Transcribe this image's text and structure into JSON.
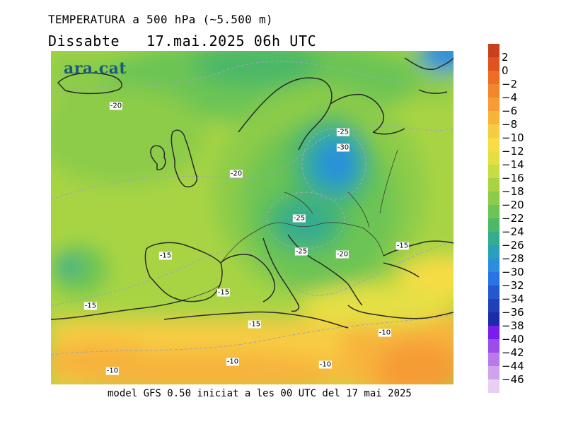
{
  "header": {
    "title": "TEMPERATURA a 500 hPa (~5.500 m)",
    "subtitle": "Dissabte   17.mai.2025 06h UTC"
  },
  "logo": {
    "text": "ara.cat"
  },
  "footer": {
    "text": "model GFS 0.50 iniciat a les 00 UTC del 17 mai 2025"
  },
  "contour_labels": [
    "-20",
    "-25",
    "-30",
    "-20",
    "-25",
    "-25",
    "-20",
    "-15",
    "-15",
    "-15",
    "-15",
    "-15",
    "-10",
    "-10",
    "-10",
    "-10"
  ],
  "legend": {
    "labels": [
      "2",
      "0",
      "−2",
      "−4",
      "−6",
      "−8",
      "−10",
      "−12",
      "−14",
      "−16",
      "−18",
      "−20",
      "−22",
      "−24",
      "−26",
      "−28",
      "−30",
      "−32",
      "−34",
      "−36",
      "−38",
      "−40",
      "−42",
      "−44",
      "−46"
    ],
    "colors": [
      "#c8401e",
      "#e0521e",
      "#ee6c24",
      "#f2862c",
      "#f59c34",
      "#f7b43c",
      "#f8cc42",
      "#f7dc44",
      "#e4e044",
      "#c8dc44",
      "#a8d444",
      "#8ccc48",
      "#6cc454",
      "#4cb868",
      "#34ac90",
      "#28a0bc",
      "#2c8ce0",
      "#2874e4",
      "#2458d0",
      "#2040b8",
      "#1c2ca8",
      "#7a1cf0",
      "#9c4ce8",
      "#b87ae8",
      "#d0a4ec",
      "#e8d0f4"
    ]
  }
}
